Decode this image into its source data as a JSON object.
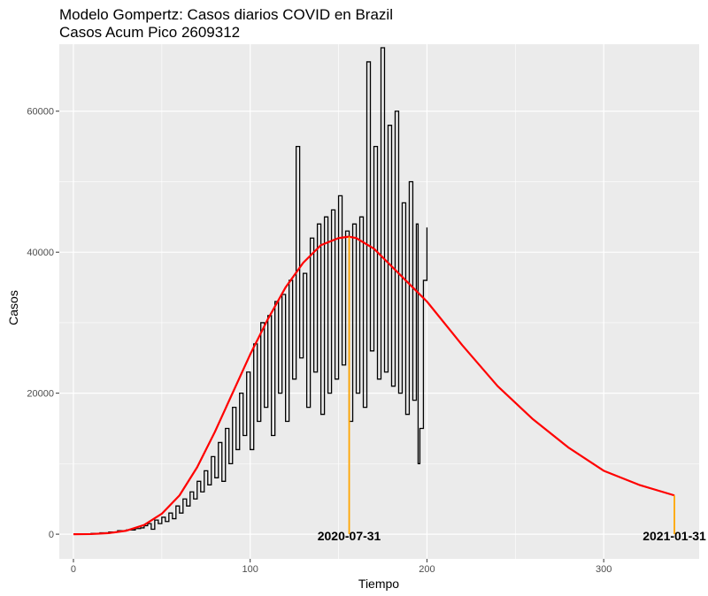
{
  "chart_data": {
    "type": "line",
    "title": "Modelo Gompertz: Casos diarios COVID en Brazil",
    "subtitle": "Casos Acum Pico 2609312",
    "xlabel": "Tiempo",
    "ylabel": "Casos",
    "xlim": [
      -8,
      354
    ],
    "ylim": [
      -3500,
      69500
    ],
    "x_ticks": [
      0,
      100,
      200,
      300
    ],
    "x_tick_labels": [
      "0",
      "100",
      "200",
      "300"
    ],
    "y_ticks": [
      0,
      20000,
      40000,
      60000
    ],
    "y_tick_labels": [
      "0",
      "20000",
      "40000",
      "60000"
    ],
    "grid": true,
    "series": [
      {
        "color": "#000000",
        "style": "step",
        "x": [
          1,
          5,
          10,
          15,
          20,
          25,
          30,
          35,
          38,
          40,
          42,
          44,
          46,
          48,
          50,
          52,
          54,
          56,
          58,
          60,
          62,
          64,
          66,
          68,
          70,
          72,
          74,
          76,
          78,
          80,
          82,
          84,
          86,
          88,
          90,
          92,
          94,
          96,
          98,
          100,
          102,
          104,
          106,
          108,
          110,
          112,
          114,
          116,
          118,
          120,
          122,
          124,
          126,
          128,
          130,
          132,
          134,
          136,
          138,
          140,
          142,
          144,
          146,
          148,
          150,
          152,
          154,
          156,
          158,
          160,
          162,
          164,
          166,
          168,
          170,
          172,
          174,
          176,
          178,
          180,
          182,
          184,
          186,
          188,
          190,
          192,
          194,
          195,
          196,
          198,
          200
        ],
        "values": [
          0,
          0,
          100,
          200,
          300,
          500,
          600,
          800,
          900,
          1200,
          1500,
          700,
          2000,
          1500,
          2400,
          1800,
          3000,
          2200,
          4000,
          3000,
          5000,
          4000,
          6000,
          5000,
          7500,
          6000,
          9000,
          7000,
          11000,
          8000,
          13000,
          7500,
          15000,
          10000,
          18000,
          12000,
          20000,
          14000,
          23000,
          12000,
          27000,
          16000,
          30000,
          18000,
          31000,
          14000,
          33000,
          20000,
          34000,
          16000,
          36000,
          22000,
          55000,
          25000,
          37000,
          18000,
          42000,
          23000,
          44000,
          17000,
          45000,
          20000,
          46000,
          22000,
          48000,
          24000,
          43000,
          16000,
          44000,
          20000,
          45000,
          18000,
          67000,
          26000,
          55000,
          22000,
          69000,
          23000,
          58000,
          21000,
          60000,
          20000,
          47000,
          17000,
          50000,
          19000,
          44000,
          10000,
          15000,
          36000,
          43500
        ]
      },
      {
        "color": "#ff0000",
        "style": "line",
        "x": [
          0,
          10,
          20,
          30,
          40,
          50,
          60,
          70,
          80,
          90,
          100,
          110,
          120,
          130,
          140,
          150,
          156,
          160,
          170,
          180,
          190,
          200,
          220,
          240,
          260,
          280,
          300,
          320,
          340
        ],
        "values": [
          0,
          20,
          150,
          500,
          1300,
          2900,
          5500,
          9500,
          14500,
          20000,
          25500,
          30500,
          35000,
          38500,
          41000,
          42000,
          42200,
          42000,
          40500,
          38000,
          35500,
          33000,
          26800,
          21000,
          16300,
          12300,
          9000,
          7000,
          5500
        ]
      }
    ],
    "annotations": [
      {
        "x": 156,
        "y": 42200,
        "label": "2020-07-31",
        "color": "#ffa500"
      },
      {
        "x": 340,
        "y": 5500,
        "label": "2021-01-31",
        "color": "#ffa500"
      }
    ]
  }
}
